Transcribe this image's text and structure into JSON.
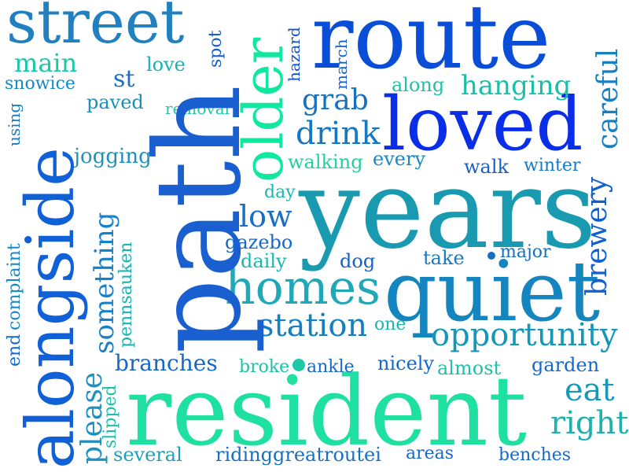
{
  "words": [
    {
      "text": "path",
      "color": "#1a5fd0"
    },
    {
      "text": "resident",
      "color": "#1ee0a0"
    },
    {
      "text": "years",
      "color": "#1a9ab0"
    },
    {
      "text": "route",
      "color": "#0a4ed8"
    },
    {
      "text": "quiet",
      "color": "#1585c0"
    },
    {
      "text": "loved",
      "color": "#0a2ee8"
    },
    {
      "text": "alongside",
      "color": "#1060d8"
    },
    {
      "text": "street",
      "color": "#2080c0"
    },
    {
      "text": "older",
      "color": "#10e8a0"
    },
    {
      "text": "homes",
      "color": "#20a8b8"
    },
    {
      "text": "opportunity",
      "color": "#1598b8"
    },
    {
      "text": "station",
      "color": "#1580c0"
    },
    {
      "text": "something",
      "color": "#1880c8"
    },
    {
      "text": "please",
      "color": "#2090c0"
    },
    {
      "text": "right",
      "color": "#20b0b0"
    },
    {
      "text": "eat",
      "color": "#1898b8"
    },
    {
      "text": "careful",
      "color": "#1880c0"
    },
    {
      "text": "brewery",
      "color": "#1060d0"
    },
    {
      "text": "drink",
      "color": "#1578c0"
    },
    {
      "text": "grab",
      "color": "#1870c0"
    },
    {
      "text": "hanging",
      "color": "#18c0a8"
    },
    {
      "text": "low",
      "color": "#1670c8"
    },
    {
      "text": "main",
      "color": "#18c8a8"
    },
    {
      "text": "branches",
      "color": "#1568c8"
    },
    {
      "text": "st",
      "color": "#1a70c0"
    },
    {
      "text": "love",
      "color": "#18b0b0"
    },
    {
      "text": "spot",
      "color": "#1560c8"
    },
    {
      "text": "hazard",
      "color": "#1050d0"
    },
    {
      "text": "march",
      "color": "#1860c8"
    },
    {
      "text": "snowice",
      "color": "#1888c0"
    },
    {
      "text": "paved",
      "color": "#1a90b8"
    },
    {
      "text": "removal",
      "color": "#20c8a8"
    },
    {
      "text": "along",
      "color": "#20c0a8"
    },
    {
      "text": "using",
      "color": "#1878c0"
    },
    {
      "text": "jogging",
      "color": "#2090b8"
    },
    {
      "text": "walking",
      "color": "#20d0a0"
    },
    {
      "text": "every",
      "color": "#1888c0"
    },
    {
      "text": "walk",
      "color": "#1860c8"
    },
    {
      "text": "winter",
      "color": "#1878c0"
    },
    {
      "text": "day",
      "color": "#18b8b0"
    },
    {
      "text": "gazebo",
      "color": "#1568c8"
    },
    {
      "text": "daily",
      "color": "#18b8b0"
    },
    {
      "text": "dog",
      "color": "#1660c8"
    },
    {
      "text": "take",
      "color": "#1878c0"
    },
    {
      "text": "major",
      "color": "#1670c0"
    },
    {
      "text": "complaint",
      "color": "#1888c0"
    },
    {
      "text": "end",
      "color": "#1868c8"
    },
    {
      "text": "pennsauken",
      "color": "#18b0b0"
    },
    {
      "text": "one",
      "color": "#18b8b0"
    },
    {
      "text": "broke",
      "color": "#20c0a8"
    },
    {
      "text": "ankle",
      "color": "#1868c8"
    },
    {
      "text": "nicely",
      "color": "#1568c8"
    },
    {
      "text": "almost",
      "color": "#20c0a8"
    },
    {
      "text": "garden",
      "color": "#1868c8"
    },
    {
      "text": "slipped",
      "color": "#20c0a8"
    },
    {
      "text": "several",
      "color": "#20a0b8"
    },
    {
      "text": "ridinggreatroutei",
      "color": "#1870c0"
    },
    {
      "text": "areas",
      "color": "#1868c8"
    },
    {
      "text": "benches",
      "color": "#1868c8"
    }
  ]
}
